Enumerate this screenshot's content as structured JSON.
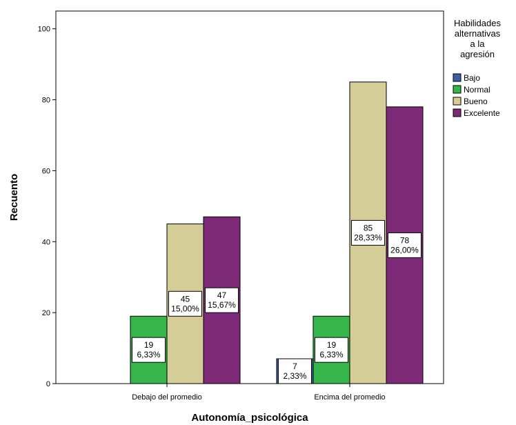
{
  "chart_data": {
    "type": "bar",
    "xlabel": "Autonomía_psicológica",
    "ylabel": "Recuento",
    "ylim": [
      0,
      105
    ],
    "yticks": [
      0,
      20,
      40,
      60,
      80,
      100
    ],
    "categories": [
      "Debajo del promedio",
      "Encima del promedio"
    ],
    "legend": {
      "title_lines": [
        "Habilidades",
        "alternativas",
        "a la",
        "agresión"
      ],
      "placement": "right"
    },
    "series": [
      {
        "name": "Bajo",
        "color": "#3d5fa8",
        "values": [
          0,
          7
        ],
        "labels": [
          [
            "",
            ""
          ],
          [
            "7",
            "2,33%"
          ]
        ]
      },
      {
        "name": "Normal",
        "color": "#35b54a",
        "values": [
          19,
          19
        ],
        "labels": [
          [
            "19",
            "6,33%"
          ],
          [
            "19",
            "6,33%"
          ]
        ]
      },
      {
        "name": "Bueno",
        "color": "#d5cd98",
        "values": [
          45,
          85
        ],
        "labels": [
          [
            "45",
            "15,00%"
          ],
          [
            "85",
            "28,33%"
          ]
        ]
      },
      {
        "name": "Excelente",
        "color": "#7d2a78",
        "values": [
          47,
          78
        ],
        "labels": [
          [
            "47",
            "15,67%"
          ],
          [
            "78",
            "26,00%"
          ]
        ]
      }
    ]
  }
}
